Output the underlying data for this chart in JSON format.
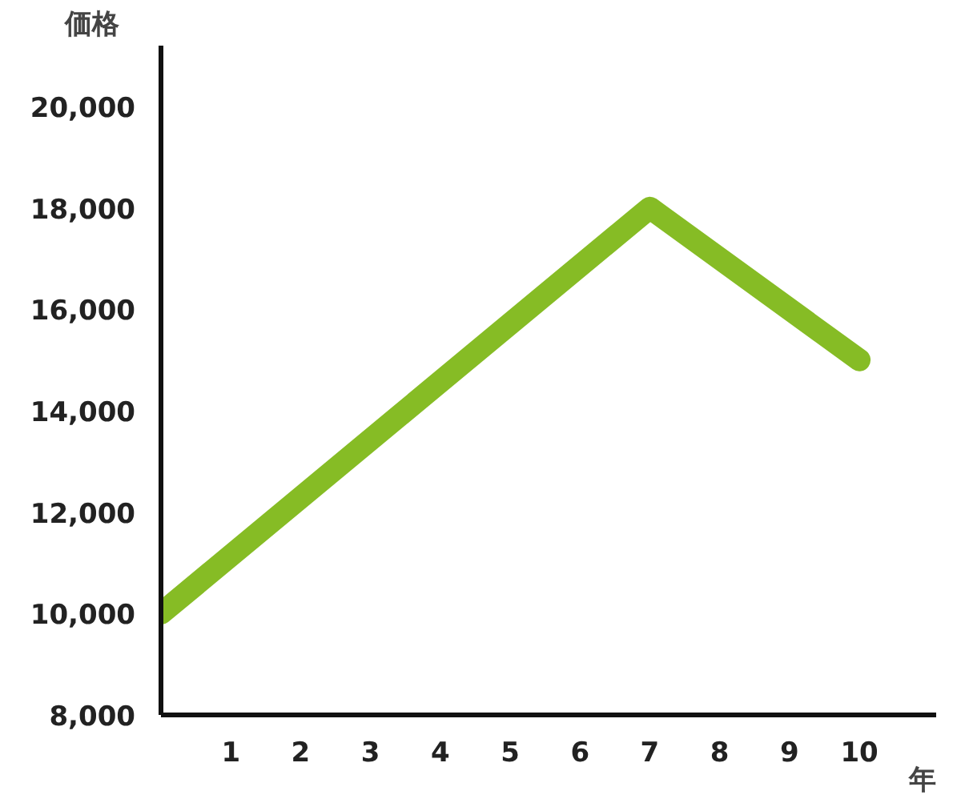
{
  "chart_data": {
    "type": "line",
    "xlabel": "年",
    "ylabel": "価格",
    "x": [
      0,
      7,
      10
    ],
    "series": [
      {
        "color": "#86bc25",
        "values": [
          10000,
          18000,
          15000
        ]
      }
    ],
    "xlim": [
      0,
      11.1
    ],
    "xticks": [
      1,
      2,
      3,
      4,
      5,
      6,
      7,
      8,
      9,
      10
    ],
    "ylim": [
      8000,
      21200
    ],
    "yticks": [
      {
        "value": 8000,
        "label": "8,000"
      },
      {
        "value": 10000,
        "label": "10,000"
      },
      {
        "value": 12000,
        "label": "12,000"
      },
      {
        "value": 14000,
        "label": "14,000"
      },
      {
        "value": 16000,
        "label": "16,000"
      },
      {
        "value": 18000,
        "label": "18,000"
      },
      {
        "value": 20000,
        "label": "20,000"
      }
    ],
    "grid": false,
    "marker": "none",
    "line_style": "solid"
  }
}
